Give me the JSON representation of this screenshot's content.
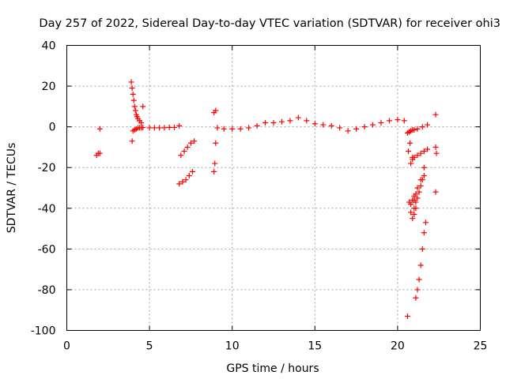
{
  "chart_data": {
    "type": "scatter",
    "title": "Day 257 of 2022, Sidereal Day-to-day VTEC variation (SDTVAR) for receiver ohi3",
    "xlabel": "GPS time / hours",
    "ylabel": "SDTVAR / TECUs",
    "xlim": [
      0,
      25
    ],
    "ylim": [
      -100,
      40
    ],
    "xticks": [
      0,
      5,
      10,
      15,
      20,
      25
    ],
    "yticks": [
      -100,
      -80,
      -60,
      -40,
      -20,
      0,
      20,
      40
    ],
    "xtick_labels": [
      "0",
      "5",
      "10",
      "15",
      "20",
      "25"
    ],
    "ytick_labels": [
      "-100",
      "-80",
      "-60",
      "-40",
      "-20",
      "0",
      "20",
      "40"
    ],
    "grid": true,
    "marker": "+",
    "color": "#ff0000",
    "series": [
      {
        "x": [
          1.8,
          1.9,
          2.0,
          2.0,
          3.9,
          3.95,
          4.0,
          4.05,
          4.1,
          4.15,
          4.2,
          4.25,
          4.3,
          4.4,
          4.5,
          4.0,
          4.1,
          4.2,
          4.3,
          4.4,
          4.5,
          4.6,
          4.6,
          3.95,
          5.0,
          5.3,
          5.6,
          5.9,
          6.2,
          6.5,
          6.8,
          6.8,
          7.0,
          7.2,
          7.4,
          7.6,
          6.9,
          7.1,
          7.3,
          7.5,
          7.7,
          8.9,
          9.0,
          8.95,
          8.9,
          9.0,
          9.1,
          9.5,
          10.0,
          10.5,
          11.0,
          11.5,
          12.0,
          12.5,
          13.0,
          13.5,
          14.0,
          14.5,
          15.0,
          15.5,
          16.0,
          16.5,
          17.0,
          17.5,
          18.0,
          18.5,
          19.0,
          19.5,
          20.0,
          20.4,
          20.6,
          20.7,
          20.8,
          20.9,
          21.0,
          21.2,
          21.5,
          21.8,
          20.65,
          20.75,
          20.9,
          20.8,
          20.9,
          21.0,
          21.2,
          21.4,
          21.6,
          21.8,
          20.7,
          20.8,
          20.9,
          21.0,
          21.1,
          21.0,
          21.1,
          21.2,
          21.4,
          21.6,
          21.1,
          21.2,
          21.3,
          21.4,
          21.5,
          21.6,
          21.7,
          21.0,
          21.1,
          21.2,
          21.3,
          21.4,
          21.5,
          21.6,
          20.8,
          20.9,
          21.0,
          20.6,
          22.3,
          22.3,
          22.35,
          22.3
        ],
        "y": [
          -14,
          -13,
          -13,
          -1,
          22,
          19,
          16,
          13,
          10,
          8,
          6,
          5,
          4,
          3,
          2,
          -2,
          -1.5,
          -1,
          -0.5,
          -0.5,
          -0.5,
          -0.3,
          10,
          -7,
          -0.5,
          -0.5,
          -0.5,
          -0.5,
          -0.3,
          -0.3,
          0.5,
          -28,
          -27,
          -26,
          -24,
          -22,
          -14,
          -12,
          -10,
          -8,
          -7,
          7,
          8,
          -18,
          -22,
          -8,
          -0.5,
          -1,
          -1,
          -1,
          -0.5,
          0.5,
          2,
          2,
          2.5,
          3,
          4.5,
          3,
          1.5,
          1,
          0.5,
          -0.5,
          -2,
          -1,
          0,
          1,
          2,
          3,
          3.5,
          3,
          -3,
          -2.5,
          -2,
          -1.5,
          -1.5,
          -1,
          0,
          1,
          -12,
          -8,
          -15,
          -18,
          -16,
          -15,
          -14,
          -13,
          -12,
          -11,
          -37,
          -42,
          -45,
          -43,
          -40,
          -36,
          -33,
          -30,
          -26,
          -20,
          -84,
          -80,
          -75,
          -68,
          -60,
          -52,
          -47,
          -40,
          -37,
          -35,
          -32,
          -29,
          -26,
          -24,
          -38,
          -36,
          -34,
          -93,
          6,
          -10,
          -13,
          -32
        ]
      }
    ]
  }
}
